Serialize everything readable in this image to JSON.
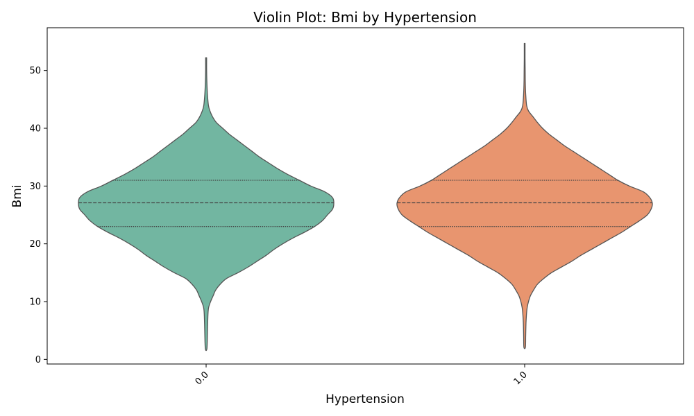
{
  "chart_data": {
    "type": "violin",
    "title": "Violin Plot: Bmi by Hypertension",
    "xlabel": "Hypertension",
    "ylabel": "Bmi",
    "categories": [
      "0.0",
      "1.0"
    ],
    "ylim": [
      -0.8,
      57.4
    ],
    "yticks": [
      0,
      10,
      20,
      30,
      40,
      50
    ],
    "ytick_labels": [
      "0",
      "10",
      "20",
      "30",
      "40",
      "50"
    ],
    "grid": false,
    "inner": "quartile",
    "series": [
      {
        "category": "0.0",
        "color": "#72b6a1",
        "min": 1.8,
        "max": 52.2,
        "q1": 23.0,
        "median": 27.1,
        "q3": 31.0,
        "density": [
          [
            1.8,
            0.006
          ],
          [
            4,
            0.01
          ],
          [
            6,
            0.012
          ],
          [
            8,
            0.015
          ],
          [
            9,
            0.02
          ],
          [
            10,
            0.035
          ],
          [
            11,
            0.055
          ],
          [
            12,
            0.075
          ],
          [
            13,
            0.11
          ],
          [
            14,
            0.16
          ],
          [
            15,
            0.25
          ],
          [
            16,
            0.33
          ],
          [
            17,
            0.4
          ],
          [
            18,
            0.47
          ],
          [
            19,
            0.53
          ],
          [
            20,
            0.6
          ],
          [
            21,
            0.68
          ],
          [
            22,
            0.77
          ],
          [
            23,
            0.85
          ],
          [
            24,
            0.91
          ],
          [
            25,
            0.95
          ],
          [
            26,
            0.99
          ],
          [
            27,
            1.0
          ],
          [
            28,
            0.99
          ],
          [
            29,
            0.93
          ],
          [
            30,
            0.82
          ],
          [
            31,
            0.73
          ],
          [
            32,
            0.64
          ],
          [
            33,
            0.56
          ],
          [
            34,
            0.49
          ],
          [
            35,
            0.42
          ],
          [
            36,
            0.36
          ],
          [
            37,
            0.3
          ],
          [
            38,
            0.24
          ],
          [
            39,
            0.18
          ],
          [
            40,
            0.13
          ],
          [
            41,
            0.08
          ],
          [
            42,
            0.05
          ],
          [
            43,
            0.03
          ],
          [
            44,
            0.018
          ],
          [
            46,
            0.01
          ],
          [
            48,
            0.006
          ],
          [
            50,
            0.004
          ],
          [
            52.2,
            0.004
          ]
        ]
      },
      {
        "category": "1.0",
        "color": "#e8956f",
        "min": 2.1,
        "max": 54.7,
        "q1": 23.0,
        "median": 27.1,
        "q3": 31.0,
        "density": [
          [
            2.1,
            0.006
          ],
          [
            4,
            0.008
          ],
          [
            6,
            0.01
          ],
          [
            7,
            0.012
          ],
          [
            8,
            0.015
          ],
          [
            9,
            0.02
          ],
          [
            10,
            0.03
          ],
          [
            11,
            0.045
          ],
          [
            12,
            0.07
          ],
          [
            13,
            0.1
          ],
          [
            14,
            0.15
          ],
          [
            15,
            0.21
          ],
          [
            16,
            0.29
          ],
          [
            17,
            0.37
          ],
          [
            18,
            0.44
          ],
          [
            19,
            0.52
          ],
          [
            20,
            0.6
          ],
          [
            21,
            0.68
          ],
          [
            22,
            0.76
          ],
          [
            23,
            0.83
          ],
          [
            24,
            0.9
          ],
          [
            25,
            0.96
          ],
          [
            26,
            0.99
          ],
          [
            27,
            1.0
          ],
          [
            28,
            0.98
          ],
          [
            29,
            0.93
          ],
          [
            30,
            0.82
          ],
          [
            31,
            0.73
          ],
          [
            32,
            0.66
          ],
          [
            33,
            0.59
          ],
          [
            34,
            0.52
          ],
          [
            35,
            0.45
          ],
          [
            36,
            0.38
          ],
          [
            37,
            0.31
          ],
          [
            38,
            0.25
          ],
          [
            39,
            0.19
          ],
          [
            40,
            0.14
          ],
          [
            41,
            0.1
          ],
          [
            42,
            0.065
          ],
          [
            43,
            0.03
          ],
          [
            44,
            0.015
          ],
          [
            46,
            0.008
          ],
          [
            48,
            0.005
          ],
          [
            50,
            0.004
          ],
          [
            52,
            0.003
          ],
          [
            54.7,
            0.003
          ]
        ]
      }
    ]
  }
}
